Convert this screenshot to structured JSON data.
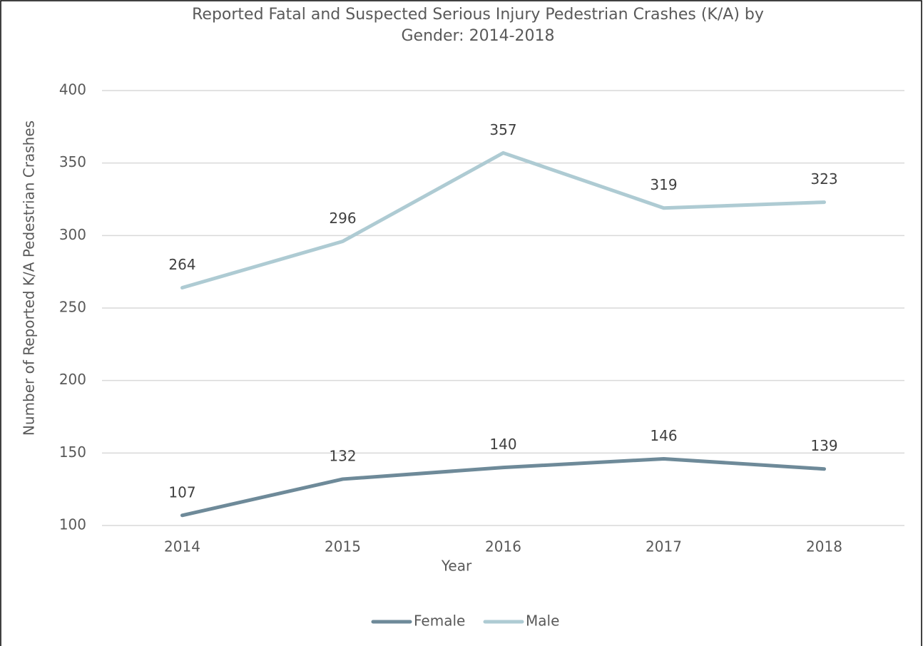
{
  "chart_data": {
    "type": "line",
    "title": "Reported Fatal and Suspected Serious Injury Pedestrian Crashes (K/A) by Gender: 2014-2018",
    "x_label": "Year",
    "y_label": "Number of Reported K/A Pedestrian Crashes",
    "categories": [
      "2014",
      "2015",
      "2016",
      "2017",
      "2018"
    ],
    "series": [
      {
        "name": "Female",
        "color": "#6e8a99",
        "values": [
          107,
          132,
          140,
          146,
          139
        ]
      },
      {
        "name": "Male",
        "color": "#aecbd3",
        "values": [
          264,
          296,
          357,
          319,
          323
        ]
      }
    ],
    "ylim": [
      100,
      400
    ],
    "yticks": [
      100,
      150,
      200,
      250,
      300,
      350,
      400
    ],
    "grid": true,
    "legend": "bottom"
  }
}
